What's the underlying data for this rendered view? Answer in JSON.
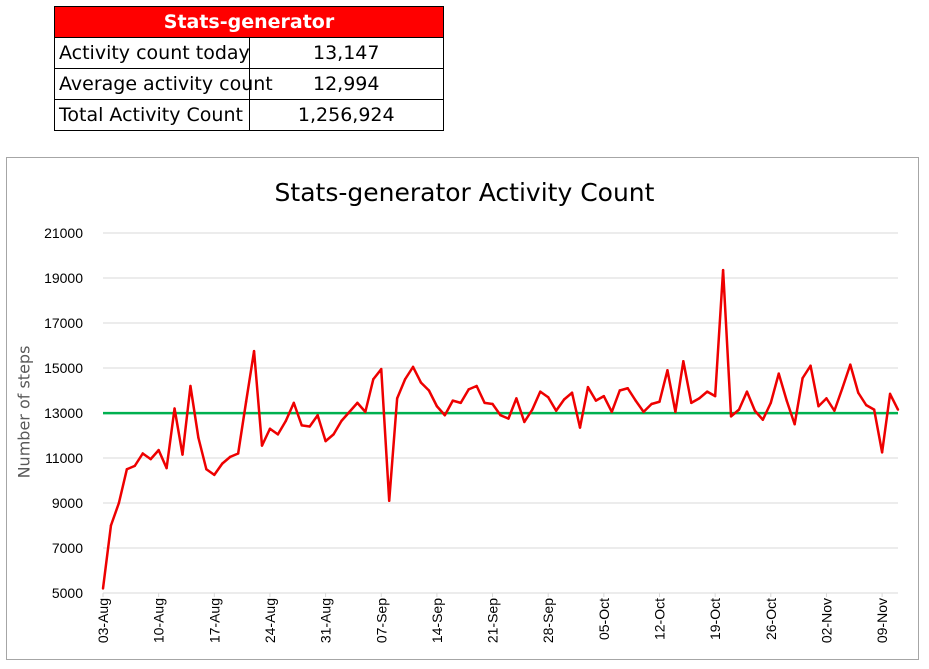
{
  "stats": {
    "title": "Stats-generator",
    "rows": [
      {
        "label": "Activity count today",
        "value": "13,147"
      },
      {
        "label": "Average activity count",
        "value": "12,994"
      },
      {
        "label": "Total Activity Count",
        "value": "1,256,924"
      }
    ]
  },
  "chart_data": {
    "type": "line",
    "title": "Stats-generator Activity Count",
    "ylabel": "Number of steps",
    "xlabel": "",
    "ylim": [
      5000,
      21000
    ],
    "yticks": [
      5000,
      7000,
      9000,
      11000,
      13000,
      15000,
      17000,
      19000,
      21000
    ],
    "grid": true,
    "legend": "none",
    "xtick_labels": [
      "03-Aug",
      "10-Aug",
      "17-Aug",
      "24-Aug",
      "31-Aug",
      "07-Sep",
      "14-Sep",
      "21-Sep",
      "28-Sep",
      "05-Oct",
      "12-Oct",
      "19-Oct",
      "26-Oct",
      "02-Nov",
      "09-Nov"
    ],
    "series": [
      {
        "color": "#ee0000",
        "values": [
          5200,
          8000,
          9000,
          10500,
          10650,
          11200,
          10950,
          11350,
          10550,
          13200,
          11150,
          14200,
          11900,
          10500,
          10250,
          10750,
          11050,
          11200,
          13500,
          15750,
          11550,
          12300,
          12050,
          12650,
          13450,
          12450,
          12400,
          12900,
          11750,
          12050,
          12650,
          13050,
          13450,
          13050,
          14500,
          14950,
          9100,
          13650,
          14500,
          15050,
          14350,
          14000,
          13300,
          12900,
          13550,
          13450,
          14050,
          14200,
          13450,
          13400,
          12900,
          12750,
          13650,
          12600,
          13150,
          13950,
          13700,
          13100,
          13600,
          13900,
          12350,
          14150,
          13550,
          13750,
          13050,
          14000,
          14100,
          13550,
          13050,
          13400,
          13500,
          14900,
          13050,
          15300,
          13450,
          13650,
          13950,
          13750,
          19350,
          12850,
          13150,
          13950,
          13100,
          12700,
          13450,
          14750,
          13550,
          12500,
          14550,
          15100,
          13300,
          13650,
          13100,
          14100,
          15150,
          13900,
          13350,
          13150,
          11250,
          13850,
          13150
        ]
      },
      {
        "color": "#00b050",
        "values": [
          12994
        ]
      }
    ]
  }
}
